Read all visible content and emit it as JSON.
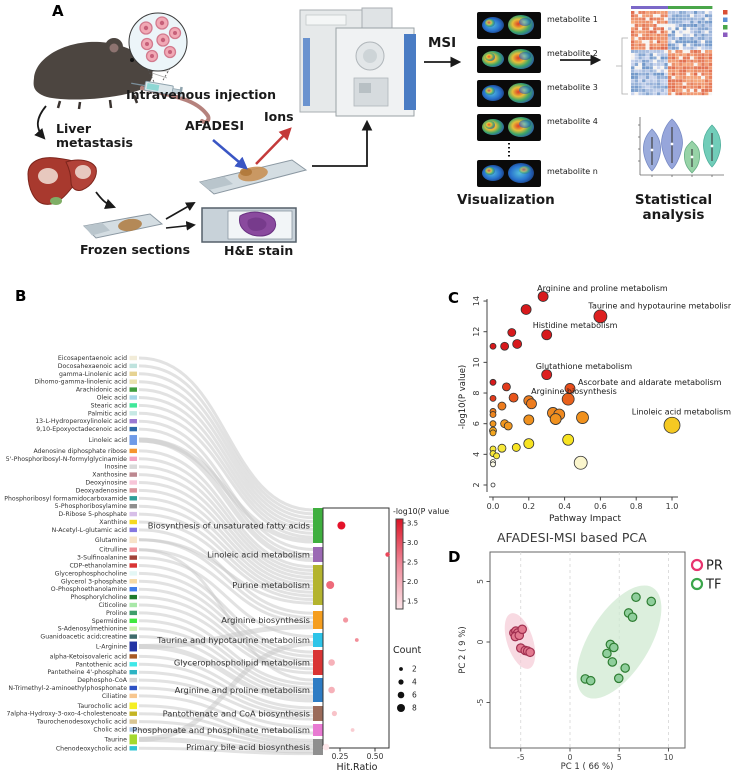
{
  "figure": {
    "panel_labels": [
      "A",
      "B",
      "C",
      "D"
    ]
  },
  "panelA": {
    "intravenous_injection": "Intravenous injection",
    "liver_metastasis_line1": "Liver",
    "liver_metastasis_line2": "metastasis",
    "afadesi": "AFADESI",
    "ions": "Ions",
    "frozen_sections": "Frozen sections",
    "he_stain": "H&E stain",
    "msi": "MSI",
    "metabolite_labels": [
      "metabolite 1",
      "metabolite 2",
      "metabolite 3",
      "metabolite 4",
      "metabolite n"
    ],
    "visualization": "Visualization",
    "statistical_line1": "Statistical",
    "statistical_line2": "analysis"
  },
  "panelB": {
    "metabolites": [
      {
        "name": "Eicosapentaenoic acid",
        "color": "#f2ecd8",
        "targets": [
          0
        ],
        "w": 1
      },
      {
        "name": "Docosahexaenoic acid",
        "color": "#bfe3de",
        "targets": [
          0
        ],
        "w": 1
      },
      {
        "name": "gamma-Linolenic acid",
        "color": "#e6d393",
        "targets": [
          0
        ],
        "w": 1
      },
      {
        "name": "Dihomo-gamma-linolenic acid",
        "color": "#e9e2ae",
        "targets": [
          0
        ],
        "w": 1
      },
      {
        "name": "Arachidonic acid",
        "color": "#3f9e3f",
        "targets": [
          0
        ],
        "w": 1
      },
      {
        "name": "Oleic acid",
        "color": "#a6d7e8",
        "targets": [
          0
        ],
        "w": 1
      },
      {
        "name": "Stearic acid",
        "color": "#3fe89a",
        "targets": [
          0
        ],
        "w": 1
      },
      {
        "name": "Palmitic acid",
        "color": "#c6e8e4",
        "targets": [
          0
        ],
        "w": 1
      },
      {
        "name": "13-L-Hydroperoxylinoleic acid",
        "color": "#9b79d2",
        "targets": [
          1
        ],
        "w": 1
      },
      {
        "name": "9,10-Epoxyoctadecenoic acid",
        "color": "#2e6aa8",
        "targets": [
          1
        ],
        "w": 1
      },
      {
        "name": "Linoleic acid",
        "color": "#6f9be8",
        "targets": [
          0,
          1
        ],
        "w": 2
      },
      {
        "name": "Adenosine diphosphate ribose",
        "color": "#f5952e",
        "targets": [
          2
        ],
        "w": 1
      },
      {
        "name": "5'-Phosphoribosyl-N-formylglycinamide",
        "color": "#f2a3c4",
        "targets": [
          2
        ],
        "w": 1
      },
      {
        "name": "Inosine",
        "color": "#d9d9d9",
        "targets": [
          2
        ],
        "w": 1
      },
      {
        "name": "Xanthosine",
        "color": "#bd8890",
        "targets": [
          2
        ],
        "w": 1
      },
      {
        "name": "Deoxyinosine",
        "color": "#f7c6d8",
        "targets": [
          2
        ],
        "w": 1
      },
      {
        "name": "Deoxyadenosine",
        "color": "#d9939b",
        "targets": [
          2
        ],
        "w": 1
      },
      {
        "name": "Phosphoribosyl formamidocarboxamide",
        "color": "#2f9e98",
        "targets": [
          2
        ],
        "w": 1
      },
      {
        "name": "5-Phosphoribosylamine",
        "color": "#8f8f8f",
        "targets": [
          2
        ],
        "w": 1
      },
      {
        "name": "D-Ribose 5-phosphate",
        "color": "#d7bfe8",
        "targets": [
          2
        ],
        "w": 1
      },
      {
        "name": "Xanthine",
        "color": "#f5d91f",
        "targets": [
          2
        ],
        "w": 1
      },
      {
        "name": "N-Acetyl-L-glutamic acid",
        "color": "#8678e0",
        "targets": [
          3
        ],
        "w": 1
      },
      {
        "name": "Glutamine",
        "color": "#f7e3c9",
        "targets": [
          2,
          3
        ],
        "w": 1.5
      },
      {
        "name": "Citrulline",
        "color": "#f0929b",
        "targets": [
          3,
          6
        ],
        "w": 1
      },
      {
        "name": "3-Sulfinoalanine",
        "color": "#a14238",
        "targets": [
          4
        ],
        "w": 1
      },
      {
        "name": "CDP-ethanolamine",
        "color": "#d93434",
        "targets": [
          5
        ],
        "w": 1
      },
      {
        "name": "Glycerophosphocholine",
        "color": "#e4f7f5",
        "targets": [
          5
        ],
        "w": 1
      },
      {
        "name": "Glycerol 3-phosphate",
        "color": "#f5d9a4",
        "targets": [
          5
        ],
        "w": 1
      },
      {
        "name": "O-Phosphoethanolamine",
        "color": "#3f7ce8",
        "targets": [
          5
        ],
        "w": 1
      },
      {
        "name": "Phosphorylcholine",
        "color": "#1f7c2e",
        "targets": [
          5
        ],
        "w": 1
      },
      {
        "name": "Citicoline",
        "color": "#a8e8a8",
        "targets": [
          5
        ],
        "w": 1
      },
      {
        "name": "Proline",
        "color": "#3f9e6b",
        "targets": [
          6
        ],
        "w": 1
      },
      {
        "name": "Spermidine",
        "color": "#3fe83f",
        "targets": [
          6
        ],
        "w": 1
      },
      {
        "name": "S-Adenosylmethionine",
        "color": "#c9f0ae",
        "targets": [
          6
        ],
        "w": 1
      },
      {
        "name": "Guanidoacetic acid;creatine",
        "color": "#3f6b6b",
        "targets": [
          6
        ],
        "w": 1
      },
      {
        "name": "L-Arginine",
        "color": "#2434a4",
        "targets": [
          3,
          6
        ],
        "w": 2
      },
      {
        "name": "alpha-Ketoisovaleric acid",
        "color": "#a85a24",
        "targets": [
          7
        ],
        "w": 1
      },
      {
        "name": "Pantothenic acid",
        "color": "#3fe8e8",
        "targets": [
          7
        ],
        "w": 1
      },
      {
        "name": "Pantetheine 4'-phosphate",
        "color": "#2eb4c4",
        "targets": [
          7
        ],
        "w": 1
      },
      {
        "name": "Dephospho-CoA",
        "color": "#d4d4d4",
        "targets": [
          7
        ],
        "w": 1
      },
      {
        "name": "N-Trimethyl-2-aminoethylphosphonate",
        "color": "#2e52c4",
        "targets": [
          8
        ],
        "w": 1
      },
      {
        "name": "Ciliatine",
        "color": "#f7c68f",
        "targets": [
          8
        ],
        "w": 1
      },
      {
        "name": "Taurocholic acid",
        "color": "#f5ef24",
        "targets": [
          9
        ],
        "w": 1.5
      },
      {
        "name": "7alpha-Hydroxy-3-oxo-4-cholestenoate",
        "color": "#c4b424",
        "targets": [
          9
        ],
        "w": 1
      },
      {
        "name": "Taurochenodesoxycholic acid",
        "color": "#d9c693",
        "targets": [
          9
        ],
        "w": 1
      },
      {
        "name": "Cholic acid",
        "color": "#a6c6e8",
        "targets": [
          9
        ],
        "w": 1
      },
      {
        "name": "Taurine",
        "color": "#a4d92e",
        "targets": [
          4,
          9
        ],
        "w": 2
      },
      {
        "name": "Chenodeoxycholic acid",
        "color": "#2ec4d4",
        "targets": [
          9
        ],
        "w": 1
      }
    ],
    "pathways": [
      {
        "name": "Biosynthesis of unsaturated fatty acids",
        "color": "#3faf3f"
      },
      {
        "name": "Linoleic acid metabolism",
        "color": "#9b69b4"
      },
      {
        "name": "Purine metabolism",
        "color": "#b4b42e"
      },
      {
        "name": "Arginine biosynthesis",
        "color": "#f59e1f"
      },
      {
        "name": "Taurine and hypotaurine metabolism",
        "color": "#2ec4e8"
      },
      {
        "name": "Glycerophospholipid metabolism",
        "color": "#d93434"
      },
      {
        "name": "Arginine and proline metabolism",
        "color": "#2e7cc4"
      },
      {
        "name": "Pantothenate and CoA biosynthesis",
        "color": "#9b6b5a"
      },
      {
        "name": "Phosphonate and phosphinate metabolism",
        "color": "#e87ad2"
      },
      {
        "name": "Primary bile acid biosynthesis",
        "color": "#8f8f8f"
      }
    ],
    "bubble_axis": {
      "label": "Hit.Ratio",
      "ticks": [
        "0.25",
        "0.50"
      ]
    },
    "legend": {
      "color_title": "-log10(P value)",
      "color_ticks": [
        "3.5",
        "3.0",
        "2.5",
        "2.0",
        "1.5"
      ],
      "count_title": "Count",
      "count_items": [
        "2",
        "4",
        "6",
        "8"
      ]
    }
  },
  "panelC": {
    "ylabel": "-log10(P value)",
    "xlabel": "Pathway Impact",
    "x_ticks": [
      "0.0",
      "0.2",
      "0.4",
      "0.6",
      "0.8",
      "1.0"
    ],
    "y_ticks": [
      "2",
      "4",
      "6",
      "8",
      "10",
      "12",
      "14"
    ]
  },
  "panelD": {
    "title": "AFADESI-MSI based PCA",
    "xlabel": "PC 1 ( 66 %)",
    "ylabel": "PC 2 ( 9 %)",
    "x_ticks": [
      "-5",
      "0",
      "5",
      "10"
    ],
    "y_ticks": [
      "5",
      "0",
      "-5"
    ],
    "legend": [
      {
        "label": "PR",
        "color": "#e8336e"
      },
      {
        "label": "TF",
        "color": "#3aa54a"
      }
    ]
  },
  "chart_data": [
    {
      "id": "pathway-enrichment-bubble",
      "type": "scatter",
      "xlabel": "Hit.Ratio",
      "xlim": [
        0.1,
        0.65
      ],
      "x_ticks": [
        0.25,
        0.5
      ],
      "color_scale": {
        "title": "-log10(P value)",
        "min": 1.5,
        "max": 3.5,
        "low": "#fbe3e7",
        "high": "#dc1426"
      },
      "size_scale": {
        "title": "Count",
        "values": [
          2,
          4,
          6,
          8
        ]
      },
      "rows": [
        {
          "pathway": "Biosynthesis of unsaturated fatty acids",
          "hit_ratio": 0.26,
          "count": 8,
          "neg_log10_p": 3.6
        },
        {
          "pathway": "Linoleic acid metabolism",
          "hit_ratio": 0.59,
          "count": 3,
          "neg_log10_p": 3.0
        },
        {
          "pathway": "Purine metabolism",
          "hit_ratio": 0.18,
          "count": 8,
          "neg_log10_p": 2.6
        },
        {
          "pathway": "Arginine biosynthesis",
          "hit_ratio": 0.29,
          "count": 4,
          "neg_log10_p": 2.1
        },
        {
          "pathway": "Taurine and hypotaurine metabolism",
          "hit_ratio": 0.37,
          "count": 2,
          "neg_log10_p": 2.2
        },
        {
          "pathway": "Glycerophospholipid metabolism",
          "hit_ratio": 0.19,
          "count": 6,
          "neg_log10_p": 1.8
        },
        {
          "pathway": "Arginine and proline metabolism",
          "hit_ratio": 0.19,
          "count": 6,
          "neg_log10_p": 1.8
        },
        {
          "pathway": "Pantothenate and CoA biosynthesis",
          "hit_ratio": 0.21,
          "count": 4,
          "neg_log10_p": 1.6
        },
        {
          "pathway": "Phosphonate and phosphinate metabolism",
          "hit_ratio": 0.34,
          "count": 2,
          "neg_log10_p": 1.5
        },
        {
          "pathway": "Primary bile acid biosynthesis",
          "hit_ratio": 0.15,
          "count": 6,
          "neg_log10_p": 1.2
        }
      ]
    },
    {
      "id": "pathway-impact-scatter",
      "type": "scatter",
      "xlabel": "Pathway Impact",
      "ylabel": "-log10(P value)",
      "xlim": [
        0,
        1.0
      ],
      "ylim": [
        2,
        14
      ],
      "points": [
        {
          "x": 0.28,
          "y": 14.3,
          "r": 5,
          "c": "#d7191c",
          "label": "Arginine and proline metabolism"
        },
        {
          "x": 0.185,
          "y": 13.45,
          "r": 5,
          "c": "#d7191c"
        },
        {
          "x": 0.6,
          "y": 13.0,
          "r": 6.5,
          "c": "#dd2020",
          "label": "Taurine and hypotaurine metabolism"
        },
        {
          "x": 0.105,
          "y": 11.95,
          "r": 4,
          "c": "#d7191c"
        },
        {
          "x": 0.3,
          "y": 11.8,
          "r": 5,
          "c": "#d7191c",
          "label": "Histidine metabolism"
        },
        {
          "x": 0.135,
          "y": 11.2,
          "r": 4.5,
          "c": "#d7191c"
        },
        {
          "x": 0.065,
          "y": 11.05,
          "r": 4,
          "c": "#d7191c"
        },
        {
          "x": 0.0,
          "y": 11.05,
          "r": 3,
          "c": "#d7191c"
        },
        {
          "x": 0.3,
          "y": 9.2,
          "r": 5,
          "c": "#dd2020",
          "label": "Glutathione metabolism"
        },
        {
          "x": 0.0,
          "y": 8.7,
          "r": 3,
          "c": "#d7191c"
        },
        {
          "x": 0.075,
          "y": 8.4,
          "r": 4,
          "c": "#e23b1c"
        },
        {
          "x": 0.43,
          "y": 8.3,
          "r": 5,
          "c": "#e84e1c",
          "label": "Ascorbate and aldarate metabolism"
        },
        {
          "x": 0.0,
          "y": 7.65,
          "r": 3,
          "c": "#e23b1c"
        },
        {
          "x": 0.115,
          "y": 7.7,
          "r": 4.5,
          "c": "#e8551c"
        },
        {
          "x": 0.42,
          "y": 7.6,
          "r": 6,
          "c": "#e8611c",
          "label": "Arginine biosynthesis"
        },
        {
          "x": 0.2,
          "y": 7.5,
          "r": 5,
          "c": "#ed7c1e"
        },
        {
          "x": 0.215,
          "y": 7.3,
          "r": 5,
          "c": "#ed7c1e"
        },
        {
          "x": 0.05,
          "y": 7.15,
          "r": 4,
          "c": "#ed7c1e"
        },
        {
          "x": 0.0,
          "y": 6.8,
          "r": 3,
          "c": "#ed7c1e"
        },
        {
          "x": 0.0,
          "y": 6.6,
          "r": 3,
          "c": "#ed851e"
        },
        {
          "x": 0.335,
          "y": 6.7,
          "r": 5.5,
          "c": "#f0891e"
        },
        {
          "x": 0.37,
          "y": 6.6,
          "r": 5.5,
          "c": "#f0891e"
        },
        {
          "x": 0.35,
          "y": 6.3,
          "r": 5.5,
          "c": "#f0911e"
        },
        {
          "x": 0.5,
          "y": 6.4,
          "r": 6,
          "c": "#f0911e"
        },
        {
          "x": 0.2,
          "y": 6.25,
          "r": 5,
          "c": "#f0911e"
        },
        {
          "x": 0.065,
          "y": 6.0,
          "r": 4,
          "c": "#f2971e"
        },
        {
          "x": 0.085,
          "y": 5.85,
          "r": 4,
          "c": "#f2971e"
        },
        {
          "x": 0.0,
          "y": 6.0,
          "r": 3,
          "c": "#f2971e"
        },
        {
          "x": 0.0,
          "y": 5.55,
          "r": 3.5,
          "c": "#f2a51e"
        },
        {
          "x": 0.0,
          "y": 5.4,
          "r": 3,
          "c": "#f2a51e"
        },
        {
          "x": 1.0,
          "y": 5.9,
          "r": 8,
          "c": "#f5c922",
          "label": "Linoleic acid metabolism"
        },
        {
          "x": 0.42,
          "y": 4.95,
          "r": 5.5,
          "c": "#f7e322"
        },
        {
          "x": 0.2,
          "y": 4.7,
          "r": 5,
          "c": "#f7e322"
        },
        {
          "x": 0.13,
          "y": 4.45,
          "r": 4,
          "c": "#f7e322"
        },
        {
          "x": 0.05,
          "y": 4.4,
          "r": 4,
          "c": "#f7e83a"
        },
        {
          "x": 0.0,
          "y": 4.35,
          "r": 3,
          "c": "#f7e83a"
        },
        {
          "x": 0.0,
          "y": 4.05,
          "r": 3,
          "c": "#f7e83a"
        },
        {
          "x": 0.02,
          "y": 3.9,
          "r": 3,
          "c": "#f7e83a"
        },
        {
          "x": 0.49,
          "y": 3.45,
          "r": 6.5,
          "c": "#fbf6cd"
        },
        {
          "x": 0.0,
          "y": 3.5,
          "r": 2.5,
          "c": "#fefce8"
        },
        {
          "x": 0.0,
          "y": 3.35,
          "r": 2.5,
          "c": "#fefce8"
        },
        {
          "x": 0.0,
          "y": 2.0,
          "r": 2,
          "c": "#ffffff"
        }
      ]
    },
    {
      "id": "afadesi-msi-pca",
      "type": "scatter",
      "title": "AFADESI-MSI based PCA",
      "xlabel": "PC 1 ( 66 %)",
      "ylabel": "PC 2 ( 9 %)",
      "series": [
        {
          "name": "PR",
          "color": "#e8336e",
          "points": [
            [
              -5.7,
              0.75
            ],
            [
              -5.5,
              0.9
            ],
            [
              -5.45,
              0.6
            ],
            [
              -5.3,
              0.75
            ],
            [
              -5.55,
              0.45
            ],
            [
              -5.15,
              0.55
            ],
            [
              -4.85,
              1.05
            ],
            [
              -5.0,
              -0.5
            ],
            [
              -4.55,
              -0.7
            ],
            [
              -4.3,
              -0.75
            ],
            [
              -4.05,
              -0.85
            ]
          ]
        },
        {
          "name": "TF",
          "color": "#3aa54a",
          "points": [
            [
              6.7,
              3.7
            ],
            [
              8.25,
              3.35
            ],
            [
              5.95,
              2.4
            ],
            [
              6.35,
              2.05
            ],
            [
              4.1,
              -0.2
            ],
            [
              4.45,
              -0.45
            ],
            [
              3.75,
              -0.95
            ],
            [
              4.3,
              -1.65
            ],
            [
              5.6,
              -2.15
            ],
            [
              1.55,
              -3.05
            ],
            [
              2.1,
              -3.2
            ],
            [
              4.95,
              -3.0
            ]
          ]
        }
      ]
    }
  ]
}
